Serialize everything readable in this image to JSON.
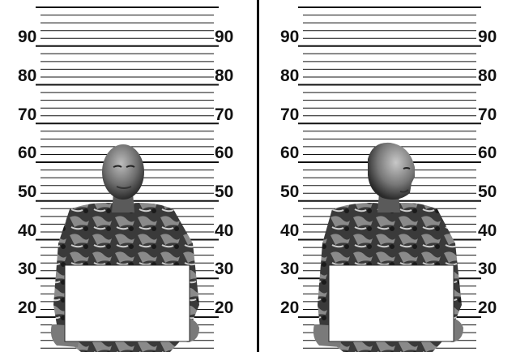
{
  "panels": [
    {
      "id": "front",
      "ticks": [
        "90",
        "80",
        "70",
        "60",
        "50",
        "40",
        "30",
        "20"
      ],
      "sign_text": ""
    },
    {
      "id": "profile",
      "ticks": [
        "90",
        "80",
        "70",
        "60",
        "50",
        "40",
        "30",
        "20"
      ],
      "sign_text": ""
    }
  ],
  "colors": {
    "background": "#ffffff",
    "lines": "#111111",
    "figure_dark": "#2a2a2a",
    "figure_mid": "#6e6e6e",
    "figure_light": "#bdbdbd",
    "sign": "#ffffff"
  }
}
